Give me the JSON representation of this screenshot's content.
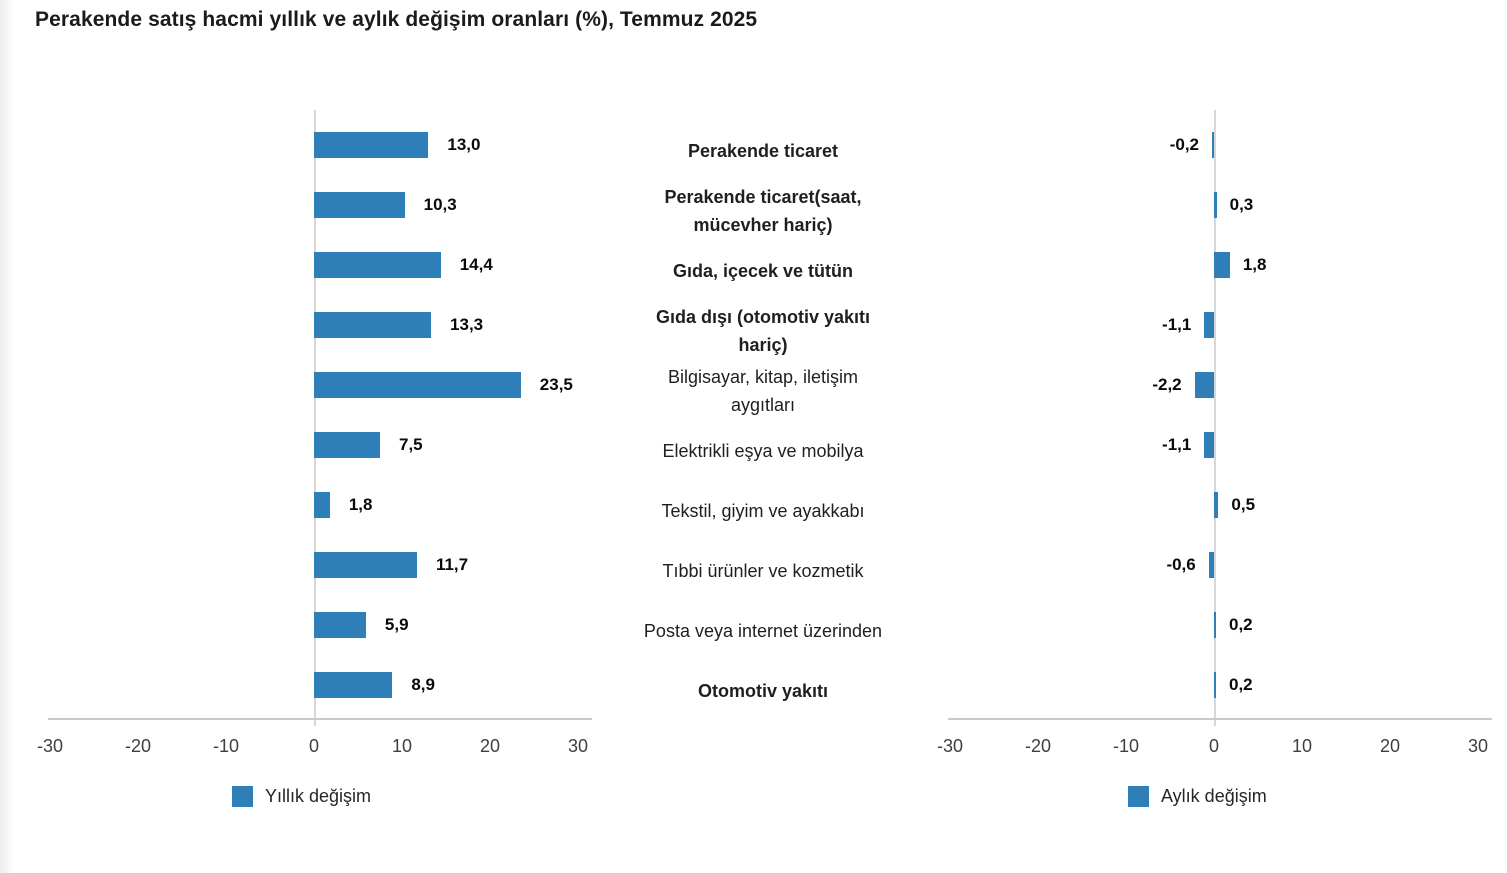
{
  "title": "Perakende satış hacmi yıllık ve aylık değişim oranları (%), Temmuz 2025",
  "chart_data": {
    "type": "bar",
    "orientation": "horizontal",
    "title": "Perakende satış hacmi yıllık ve aylık değişim oranları (%), Temmuz 2025",
    "categories": [
      "Perakende ticaret",
      "Perakende ticaret(saat,\nmücevher hariç)",
      "Gıda, içecek ve tütün",
      "Gıda dışı (otomotiv yakıtı\nhariç)",
      "Bilgisayar, kitap, iletişim\naygıtları",
      "Elektrikli eşya ve mobilya",
      "Tekstil, giyim ve ayakkabı",
      "Tıbbi ürünler ve kozmetik",
      "Posta veya internet üzerinden",
      "Otomotiv yakıtı"
    ],
    "bold_categories": [
      true,
      true,
      true,
      true,
      false,
      false,
      false,
      false,
      false,
      true
    ],
    "series": [
      {
        "name": "Yıllık değişim",
        "values": [
          13.0,
          10.3,
          14.4,
          13.3,
          23.5,
          7.5,
          1.8,
          11.7,
          5.9,
          8.9
        ],
        "value_labels": [
          "13,0",
          "10,3",
          "14,4",
          "13,3",
          "23,5",
          "7,5",
          "1,8",
          "11,7",
          "5,9",
          "8,9"
        ]
      },
      {
        "name": "Aylık değişim",
        "values": [
          -0.2,
          0.3,
          1.8,
          -1.1,
          -2.2,
          -1.1,
          0.5,
          -0.6,
          0.2,
          0.2
        ],
        "value_labels": [
          "-0,2",
          "0,3",
          "1,8",
          "-1,1",
          "-2,2",
          "-1,1",
          "0,5",
          "-0,6",
          "0,2",
          "0,2"
        ]
      }
    ],
    "xlim": [
      -30,
      30
    ],
    "tick_labels": [
      "-30",
      "-20",
      "-10",
      "0",
      "10",
      "20",
      "30"
    ],
    "tick_values": [
      -30,
      -20,
      -10,
      0,
      10,
      20,
      30
    ],
    "bar_color": "#2E7EB8",
    "grid": "zero-line-only",
    "legend_position": "bottom"
  }
}
